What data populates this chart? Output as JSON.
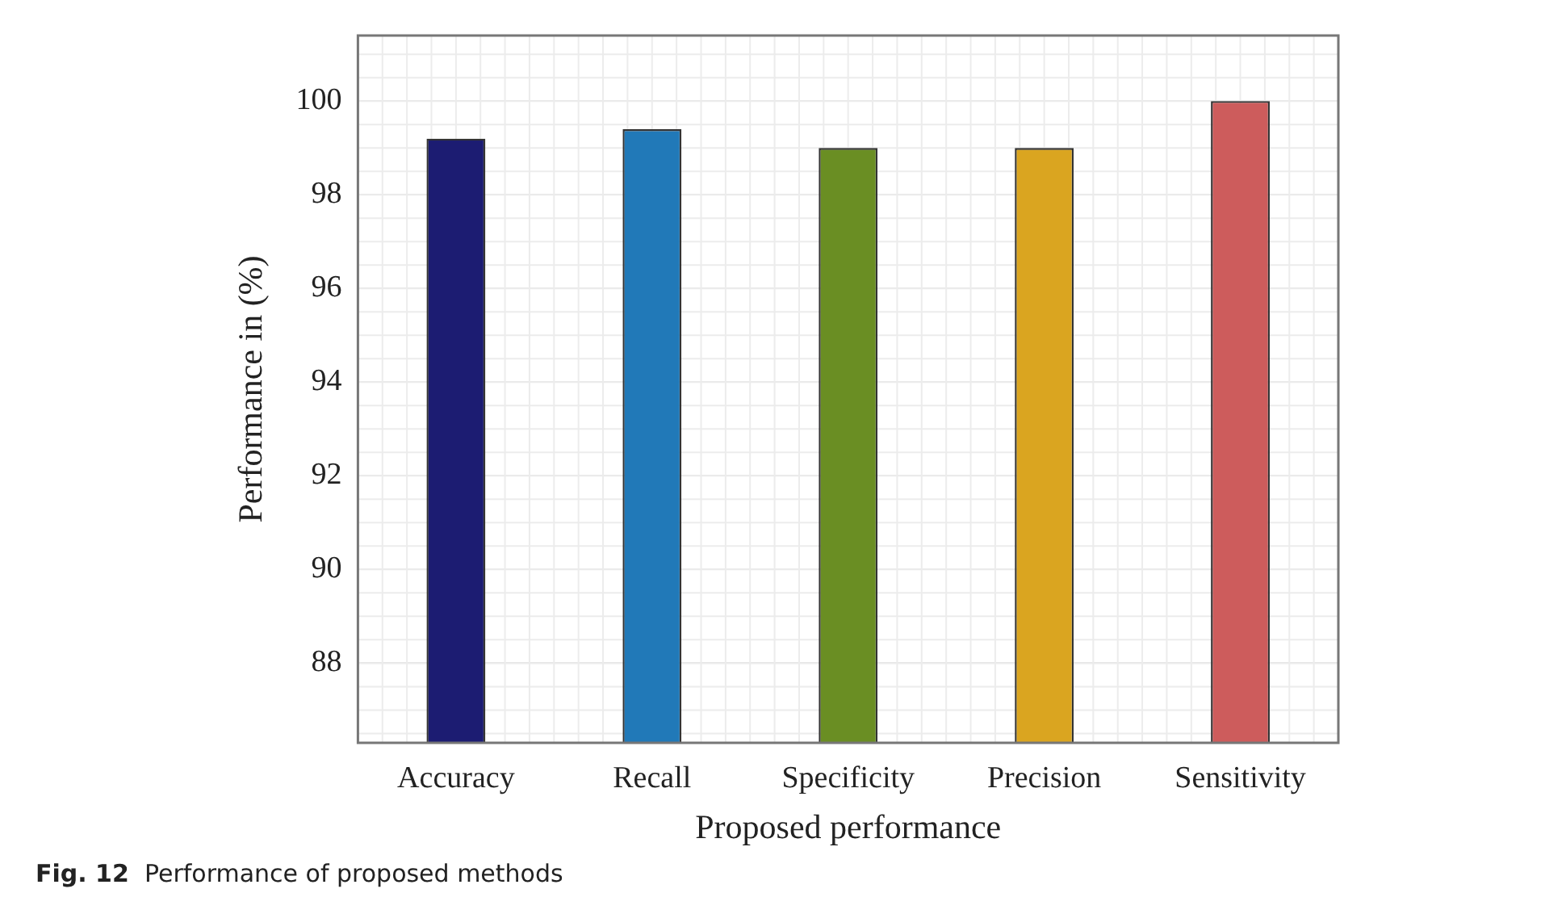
{
  "chart_data": {
    "type": "bar",
    "categories": [
      "Accuracy",
      "Recall",
      "Specificity",
      "Precision",
      "Sensitivity"
    ],
    "values": [
      99.2,
      99.4,
      99.0,
      99.0,
      100.0
    ],
    "colors": [
      "#1c1c72",
      "#2179b8",
      "#6a8e23",
      "#daa520",
      "#cd5c5c"
    ],
    "xlabel": "Proposed performance",
    "ylabel": "Performance in (%)",
    "ylim": [
      86.3,
      101.4
    ],
    "yticks": [
      88,
      90,
      92,
      94,
      96,
      98,
      100
    ],
    "grid": true,
    "annotations": [
      "Fig. 12  Performance of proposed methods"
    ]
  }
}
